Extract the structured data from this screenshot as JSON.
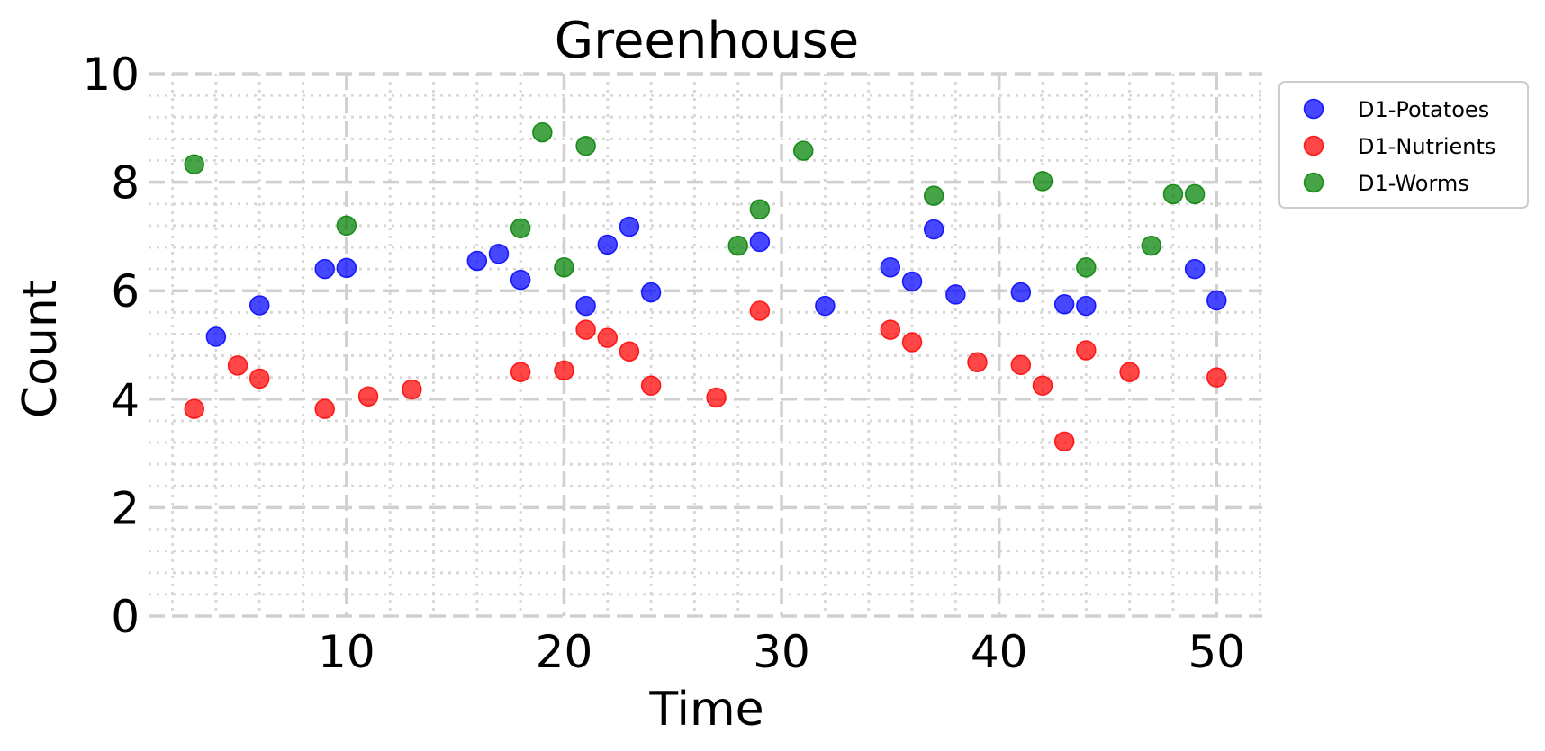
{
  "chart_data": {
    "type": "scatter",
    "title": "Greenhouse",
    "xlabel": "Time",
    "ylabel": "Count",
    "xlim": [
      0.9,
      52.1
    ],
    "ylim": [
      0,
      10
    ],
    "xticks": [
      10,
      20,
      30,
      40,
      50
    ],
    "yticks": [
      0,
      2,
      4,
      6,
      8,
      10
    ],
    "grid": true,
    "legend_position": "outside-right-top",
    "series": [
      {
        "name": "D1-Potatoes",
        "color": "#0000ff",
        "points": [
          [
            4,
            5.15
          ],
          [
            6,
            5.73
          ],
          [
            9,
            6.4
          ],
          [
            10,
            6.42
          ],
          [
            16,
            6.55
          ],
          [
            17,
            6.68
          ],
          [
            18,
            6.2
          ],
          [
            21,
            5.72
          ],
          [
            22,
            6.85
          ],
          [
            23,
            7.18
          ],
          [
            24,
            5.97
          ],
          [
            29,
            6.9
          ],
          [
            32,
            5.72
          ],
          [
            35,
            6.43
          ],
          [
            36,
            6.17
          ],
          [
            37,
            7.13
          ],
          [
            38,
            5.93
          ],
          [
            41,
            5.97
          ],
          [
            43,
            5.75
          ],
          [
            44,
            5.72
          ],
          [
            49,
            6.4
          ],
          [
            50,
            5.82
          ]
        ]
      },
      {
        "name": "D1-Nutrients",
        "color": "#ff0000",
        "points": [
          [
            3,
            3.82
          ],
          [
            5,
            4.62
          ],
          [
            6,
            4.38
          ],
          [
            9,
            3.82
          ],
          [
            11,
            4.05
          ],
          [
            13,
            4.18
          ],
          [
            18,
            4.5
          ],
          [
            20,
            4.53
          ],
          [
            21,
            5.28
          ],
          [
            22,
            5.13
          ],
          [
            23,
            4.88
          ],
          [
            24,
            4.25
          ],
          [
            27,
            4.03
          ],
          [
            29,
            5.63
          ],
          [
            35,
            5.28
          ],
          [
            36,
            5.05
          ],
          [
            39,
            4.68
          ],
          [
            41,
            4.63
          ],
          [
            42,
            4.25
          ],
          [
            43,
            3.22
          ],
          [
            44,
            4.9
          ],
          [
            46,
            4.5
          ],
          [
            50,
            4.4
          ]
        ]
      },
      {
        "name": "D1-Worms",
        "color": "#008000",
        "points": [
          [
            3,
            8.33
          ],
          [
            10,
            7.2
          ],
          [
            18,
            7.15
          ],
          [
            19,
            8.92
          ],
          [
            20,
            6.43
          ],
          [
            21,
            8.67
          ],
          [
            28,
            6.83
          ],
          [
            29,
            7.5
          ],
          [
            31,
            8.58
          ],
          [
            37,
            7.75
          ],
          [
            42,
            8.02
          ],
          [
            44,
            6.43
          ],
          [
            47,
            6.83
          ],
          [
            48,
            7.78
          ],
          [
            49,
            7.78
          ]
        ]
      }
    ]
  }
}
